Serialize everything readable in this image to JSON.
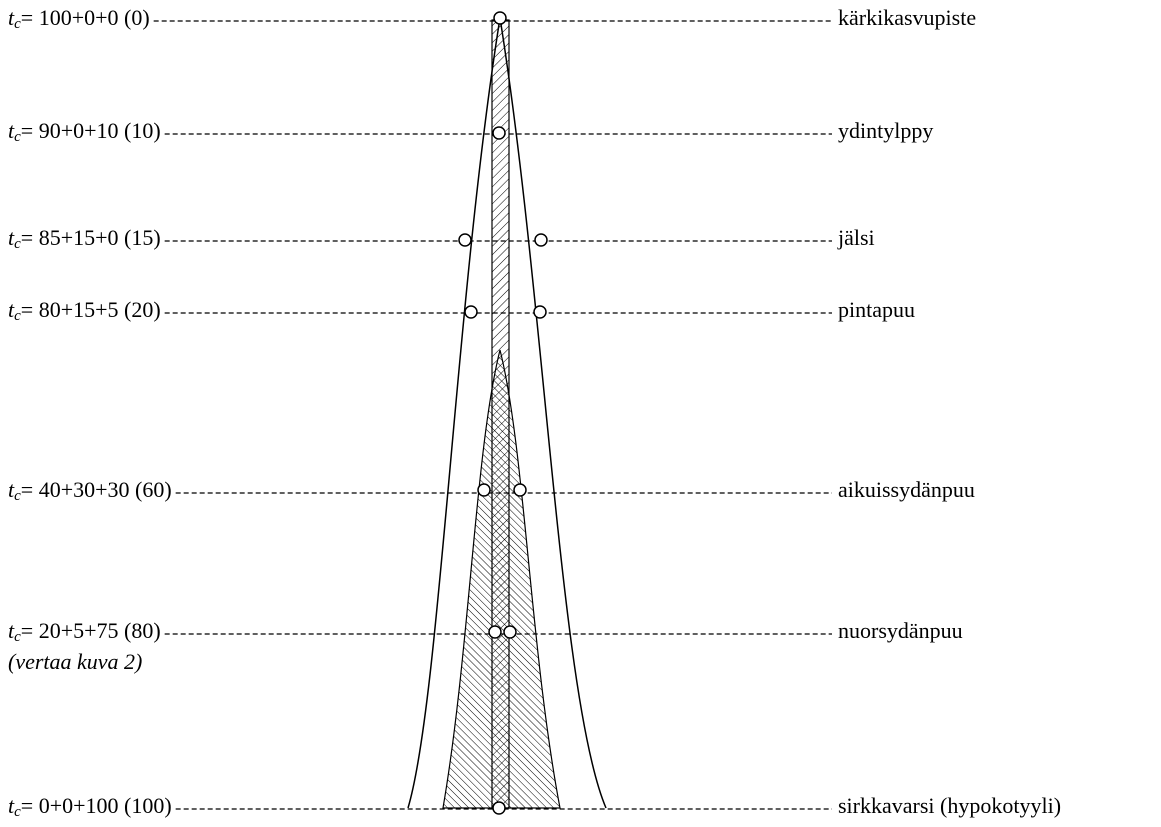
{
  "rows": [
    {
      "symbol": "t",
      "subscript": "c",
      "formula": "= 100+0+0 (0)",
      "label": "kärkikasvupiste"
    },
    {
      "symbol": "t",
      "subscript": "c",
      "formula": "= 90+0+10 (10)",
      "label": "ydintylppy"
    },
    {
      "symbol": "t",
      "subscript": "c",
      "formula": "= 85+15+0 (15)",
      "label": "jälsi"
    },
    {
      "symbol": "t",
      "subscript": "c",
      "formula": "= 80+15+5 (20)",
      "label": "pintapuu"
    },
    {
      "symbol": "t",
      "subscript": "c",
      "formula": "= 40+30+30 (60)",
      "label": "aikuissydänpuu"
    },
    {
      "symbol": "t",
      "subscript": "c",
      "formula": "= 20+5+75 (80)",
      "label": "nuorsydänpuu"
    },
    {
      "symbol": "t",
      "subscript": "c",
      "formula": "= 0+0+100 (100)",
      "label": "sirkkavarsi (hypokotyyli)"
    }
  ],
  "note": "(vertaa kuva 2)"
}
